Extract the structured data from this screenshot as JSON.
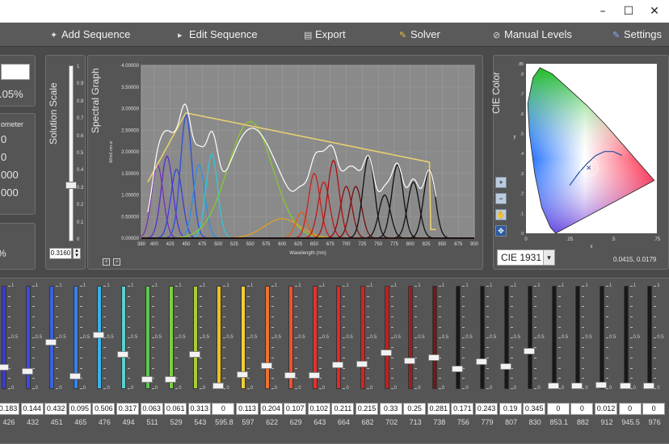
{
  "window": {
    "controls": [
      "–",
      "☐",
      "✕"
    ]
  },
  "toolbar": {
    "items": [
      {
        "label": "Add Sequence",
        "icon": "add-sequence-icon"
      },
      {
        "label": "Edit Sequence",
        "icon": "edit-sequence-icon"
      },
      {
        "label": "Export",
        "icon": "export-icon"
      },
      {
        "label": "Solver",
        "icon": "solver-icon"
      },
      {
        "label": "Manual Levels",
        "icon": "manual-levels-icon"
      },
      {
        "label": "Settings",
        "icon": "settings-icon"
      }
    ]
  },
  "left_panel": {
    "percent_readout": ".05%",
    "photometer_label": "ometer",
    "photometer_values": [
      "0",
      "0",
      "000",
      "000"
    ],
    "bottom_percent": "%"
  },
  "solution_scale": {
    "title": "Solution Scale",
    "value": "0.3160",
    "level": 0.316,
    "ticks": [
      "1",
      "0.9",
      "0.8",
      "0.7",
      "0.6",
      "0.5",
      "0.4",
      "0.3",
      "0.2",
      "0.1",
      "0"
    ]
  },
  "spectral_graph": {
    "title": "Spectral Graph",
    "ylabel": "W/m2·nm·sr",
    "xlabel": "Wavelength (nm)"
  },
  "cie": {
    "title": "CIE Color",
    "selector_value": "CIE 1931",
    "coords_readout": "0.0415, 0.0179",
    "axis_x_label": "x",
    "axis_y_label": "y",
    "tools": [
      "zoom-in-icon",
      "zoom-out-icon",
      "pan-icon",
      "fit-icon"
    ]
  },
  "chart_data": {
    "type": "line",
    "xlim": [
      380,
      900
    ],
    "ylim": [
      0,
      4.0
    ],
    "x_ticks": [
      "380",
      "400",
      "425",
      "450",
      "475",
      "500",
      "525",
      "550",
      "575",
      "600",
      "625",
      "650",
      "675",
      "700",
      "725",
      "750",
      "775",
      "800",
      "825",
      "850",
      "875",
      "900"
    ],
    "y_ticks": [
      "0.00000",
      "0.50000",
      "1.00000",
      "1.50000",
      "2.00000",
      "2.50000",
      "3.00000",
      "3.50000",
      "4.00000"
    ],
    "channel_peaks": [
      {
        "peak": 405,
        "height": 1.7,
        "color": "#7a2fb0"
      },
      {
        "peak": 420,
        "height": 1.9,
        "color": "#5a2fd0"
      },
      {
        "peak": 435,
        "height": 1.6,
        "color": "#3a3fe0"
      },
      {
        "peak": 450,
        "height": 2.85,
        "color": "#2f4fd8"
      },
      {
        "peak": 470,
        "height": 1.7,
        "color": "#2a8fe8"
      },
      {
        "peak": 490,
        "height": 1.95,
        "color": "#30c8d8"
      },
      {
        "peak": 550,
        "height": 2.7,
        "color": "#8ac830"
      },
      {
        "peak": 600,
        "height": 0.45,
        "color": "#e0a020"
      },
      {
        "peak": 630,
        "height": 0.6,
        "color": "#e06010"
      },
      {
        "peak": 650,
        "height": 1.5,
        "color": "#d02020"
      },
      {
        "peak": 665,
        "height": 1.3,
        "color": "#c01818"
      },
      {
        "peak": 680,
        "height": 1.8,
        "color": "#b01010"
      },
      {
        "peak": 700,
        "height": 1.2,
        "color": "#901010"
      },
      {
        "peak": 715,
        "height": 1.2,
        "color": "#701010"
      },
      {
        "peak": 735,
        "height": 1.9,
        "color": "#101010"
      },
      {
        "peak": 760,
        "height": 1.0,
        "color": "#101010"
      },
      {
        "peak": 780,
        "height": 1.7,
        "color": "#101010"
      },
      {
        "peak": 805,
        "height": 1.3,
        "color": "#101010"
      },
      {
        "peak": 830,
        "height": 1.6,
        "color": "#101010"
      }
    ],
    "target_curve_color": "#e8d070",
    "sum_curve_color": "#ffffff"
  },
  "sliders": {
    "channels": [
      {
        "value": "0.183",
        "wl": "426",
        "color": "#3b3bd8",
        "level": 0.183
      },
      {
        "value": "0.144",
        "wl": "432",
        "color": "#3b4ce0",
        "level": 0.144
      },
      {
        "value": "0.432",
        "wl": "451",
        "color": "#3a63e0",
        "level": 0.432
      },
      {
        "value": "0.095",
        "wl": "465",
        "color": "#3a80e8",
        "level": 0.095
      },
      {
        "value": "0.506",
        "wl": "476",
        "color": "#39b3e8",
        "level": 0.506
      },
      {
        "value": "0.317",
        "wl": "494",
        "color": "#5ad0d0",
        "level": 0.317
      },
      {
        "value": "0.063",
        "wl": "511",
        "color": "#5ac850",
        "level": 0.063
      },
      {
        "value": "0.061",
        "wl": "529",
        "color": "#7ad040",
        "level": 0.061
      },
      {
        "value": "0.313",
        "wl": "543",
        "color": "#a6d030",
        "level": 0.313
      },
      {
        "value": "0",
        "wl": "595.8",
        "color": "#f0c020",
        "level": 0.0
      },
      {
        "value": "0.113",
        "wl": "597",
        "color": "#f0d030",
        "level": 0.113
      },
      {
        "value": "0.204",
        "wl": "622",
        "color": "#f07030",
        "level": 0.204
      },
      {
        "value": "0.107",
        "wl": "629",
        "color": "#f05030",
        "level": 0.107
      },
      {
        "value": "0.102",
        "wl": "643",
        "color": "#e83030",
        "level": 0.102
      },
      {
        "value": "0.211",
        "wl": "664",
        "color": "#e02828",
        "level": 0.211
      },
      {
        "value": "0.215",
        "wl": "682",
        "color": "#d02424",
        "level": 0.215
      },
      {
        "value": "0.33",
        "wl": "702",
        "color": "#c02020",
        "level": 0.33
      },
      {
        "value": "0.25",
        "wl": "713",
        "color": "#a01c1c",
        "level": 0.25
      },
      {
        "value": "0.281",
        "wl": "738",
        "color": "#701818",
        "level": 0.281
      },
      {
        "value": "0.171",
        "wl": "756",
        "color": "#181818",
        "level": 0.171
      },
      {
        "value": "0.243",
        "wl": "779",
        "color": "#181818",
        "level": 0.243
      },
      {
        "value": "0.19",
        "wl": "807",
        "color": "#181818",
        "level": 0.19
      },
      {
        "value": "0.345",
        "wl": "830",
        "color": "#181818",
        "level": 0.345
      },
      {
        "value": "0",
        "wl": "853.1",
        "color": "#181818",
        "level": 0.0
      },
      {
        "value": "0",
        "wl": "882",
        "color": "#181818",
        "level": 0.0
      },
      {
        "value": "0.012",
        "wl": "912",
        "color": "#181818",
        "level": 0.012
      },
      {
        "value": "0",
        "wl": "945.5",
        "color": "#181818",
        "level": 0.0
      },
      {
        "value": "0",
        "wl": "976",
        "color": "#181818",
        "level": 0.0
      }
    ],
    "ticks": [
      "1",
      "",
      "",
      "",
      "",
      "0.5",
      "",
      "",
      "",
      "",
      "0"
    ]
  }
}
